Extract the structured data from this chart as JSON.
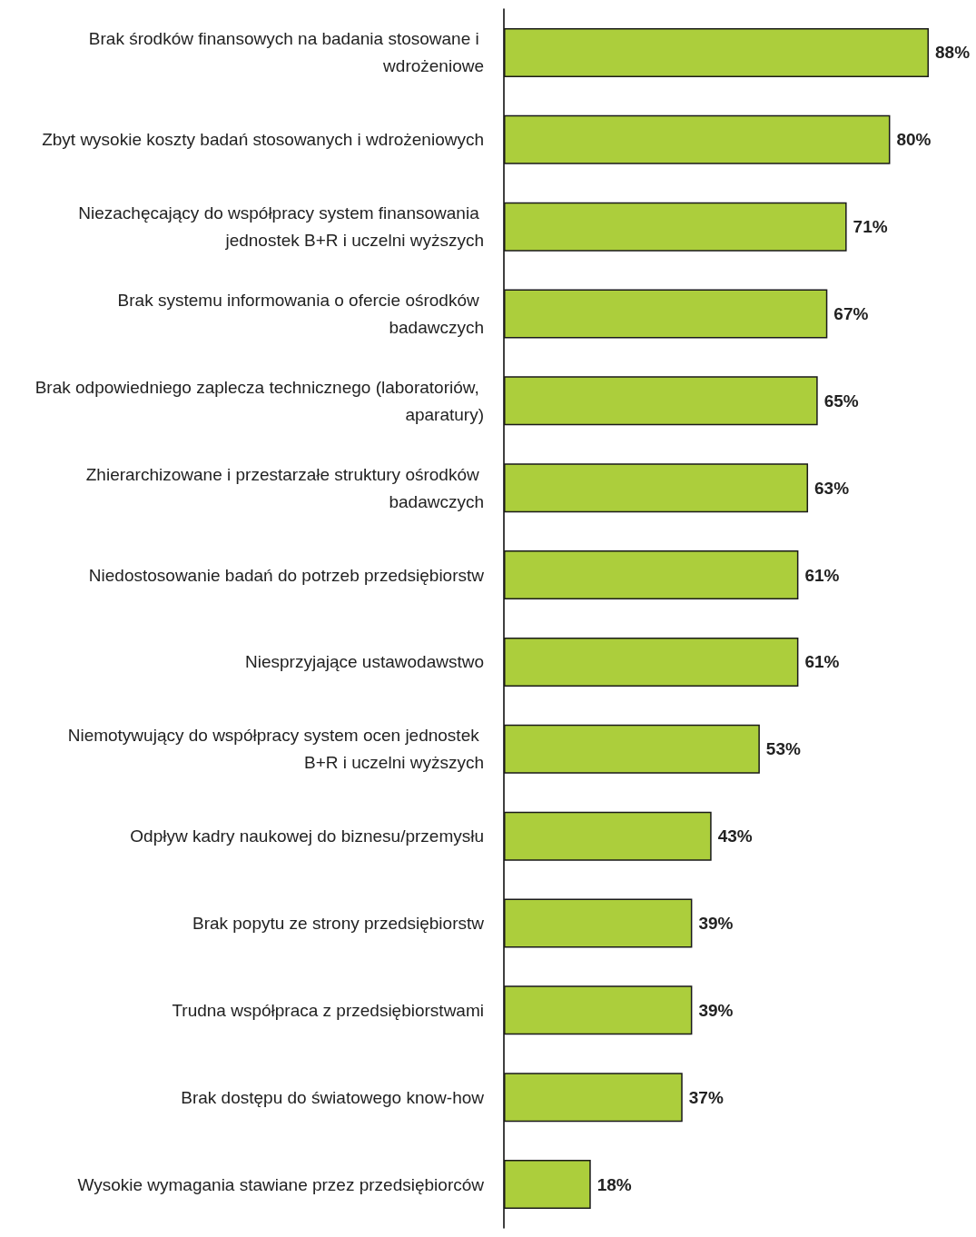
{
  "chart_data": {
    "type": "bar",
    "orientation": "horizontal",
    "color": "#acce3c",
    "categories": [
      "Brak środków finansowych na badania stosowane i wdrożeniowe",
      "Zbyt wysokie koszty badań stosowanych i wdrożeniowych",
      "Niezachęcający do współpracy system finansowania jednostek B+R i uczelni wyższych",
      "Brak systemu informowania o ofercie ośrodków badawczych",
      "Brak odpowiedniego zaplecza technicznego (laboratoriów, aparatury)",
      "Zhierarchizowane i przestarzałe struktury ośrodków badawczych",
      "Niedostosowanie badań do potrzeb przedsiębiorstw",
      "Niesprzyjające ustawodawstwo",
      "Niemotywujący do współpracy system ocen jednostek B+R i uczelni wyższych",
      "Odpływ kadry naukowej do biznesu/przemysłu",
      "Brak popytu ze strony przedsiębiorstw",
      "Trudna współpraca z przedsiębiorstwami",
      "Brak dostępu do światowego know-how",
      "Wysokie wymagania stawiane przez przedsiębiorców"
    ],
    "values": [
      88,
      80,
      71,
      67,
      65,
      63,
      61,
      61,
      53,
      43,
      39,
      39,
      37,
      18
    ],
    "value_labels": [
      "88%",
      "80%",
      "71%",
      "67%",
      "65%",
      "63%",
      "61%",
      "61%",
      "53%",
      "43%",
      "39%",
      "39%",
      "37%",
      "18%"
    ]
  }
}
